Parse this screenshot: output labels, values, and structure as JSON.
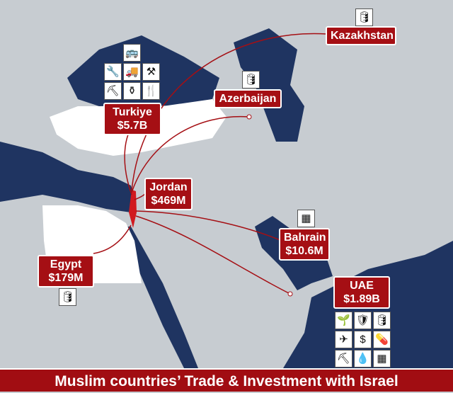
{
  "title": "Muslim countries’ Trade & Investment with Israel",
  "colors": {
    "sea": "#1f3461",
    "land": "#c7ccd1",
    "highlight": "#ffffff",
    "label": "#a50f14",
    "arc": "#a50f14"
  },
  "countries": [
    {
      "name": "Kazakhstan",
      "value": "",
      "icons": [
        "oil-barrel"
      ]
    },
    {
      "name": "Azerbaijan",
      "value": "",
      "icons": [
        "oil-barrel"
      ]
    },
    {
      "name": "Turkiye",
      "value": "$5.7B",
      "icons": [
        "bus",
        "drill",
        "cement-mixer",
        "anvil",
        "wheelbarrow",
        "vase",
        "fork-knife"
      ]
    },
    {
      "name": "Jordan",
      "value": "$469M",
      "icons": []
    },
    {
      "name": "Bahrain",
      "value": "$10.6M",
      "icons": [
        "microchip"
      ]
    },
    {
      "name": "Egypt",
      "value": "$179M",
      "icons": [
        "oil-barrel"
      ]
    },
    {
      "name": "UAE",
      "value": "$1.89B",
      "icons": [
        "agriculture",
        "shield-lock",
        "oil-barrel",
        "airplane",
        "dollar",
        "medicine",
        "wheelbarrow",
        "water-drops",
        "microchip"
      ]
    }
  ]
}
